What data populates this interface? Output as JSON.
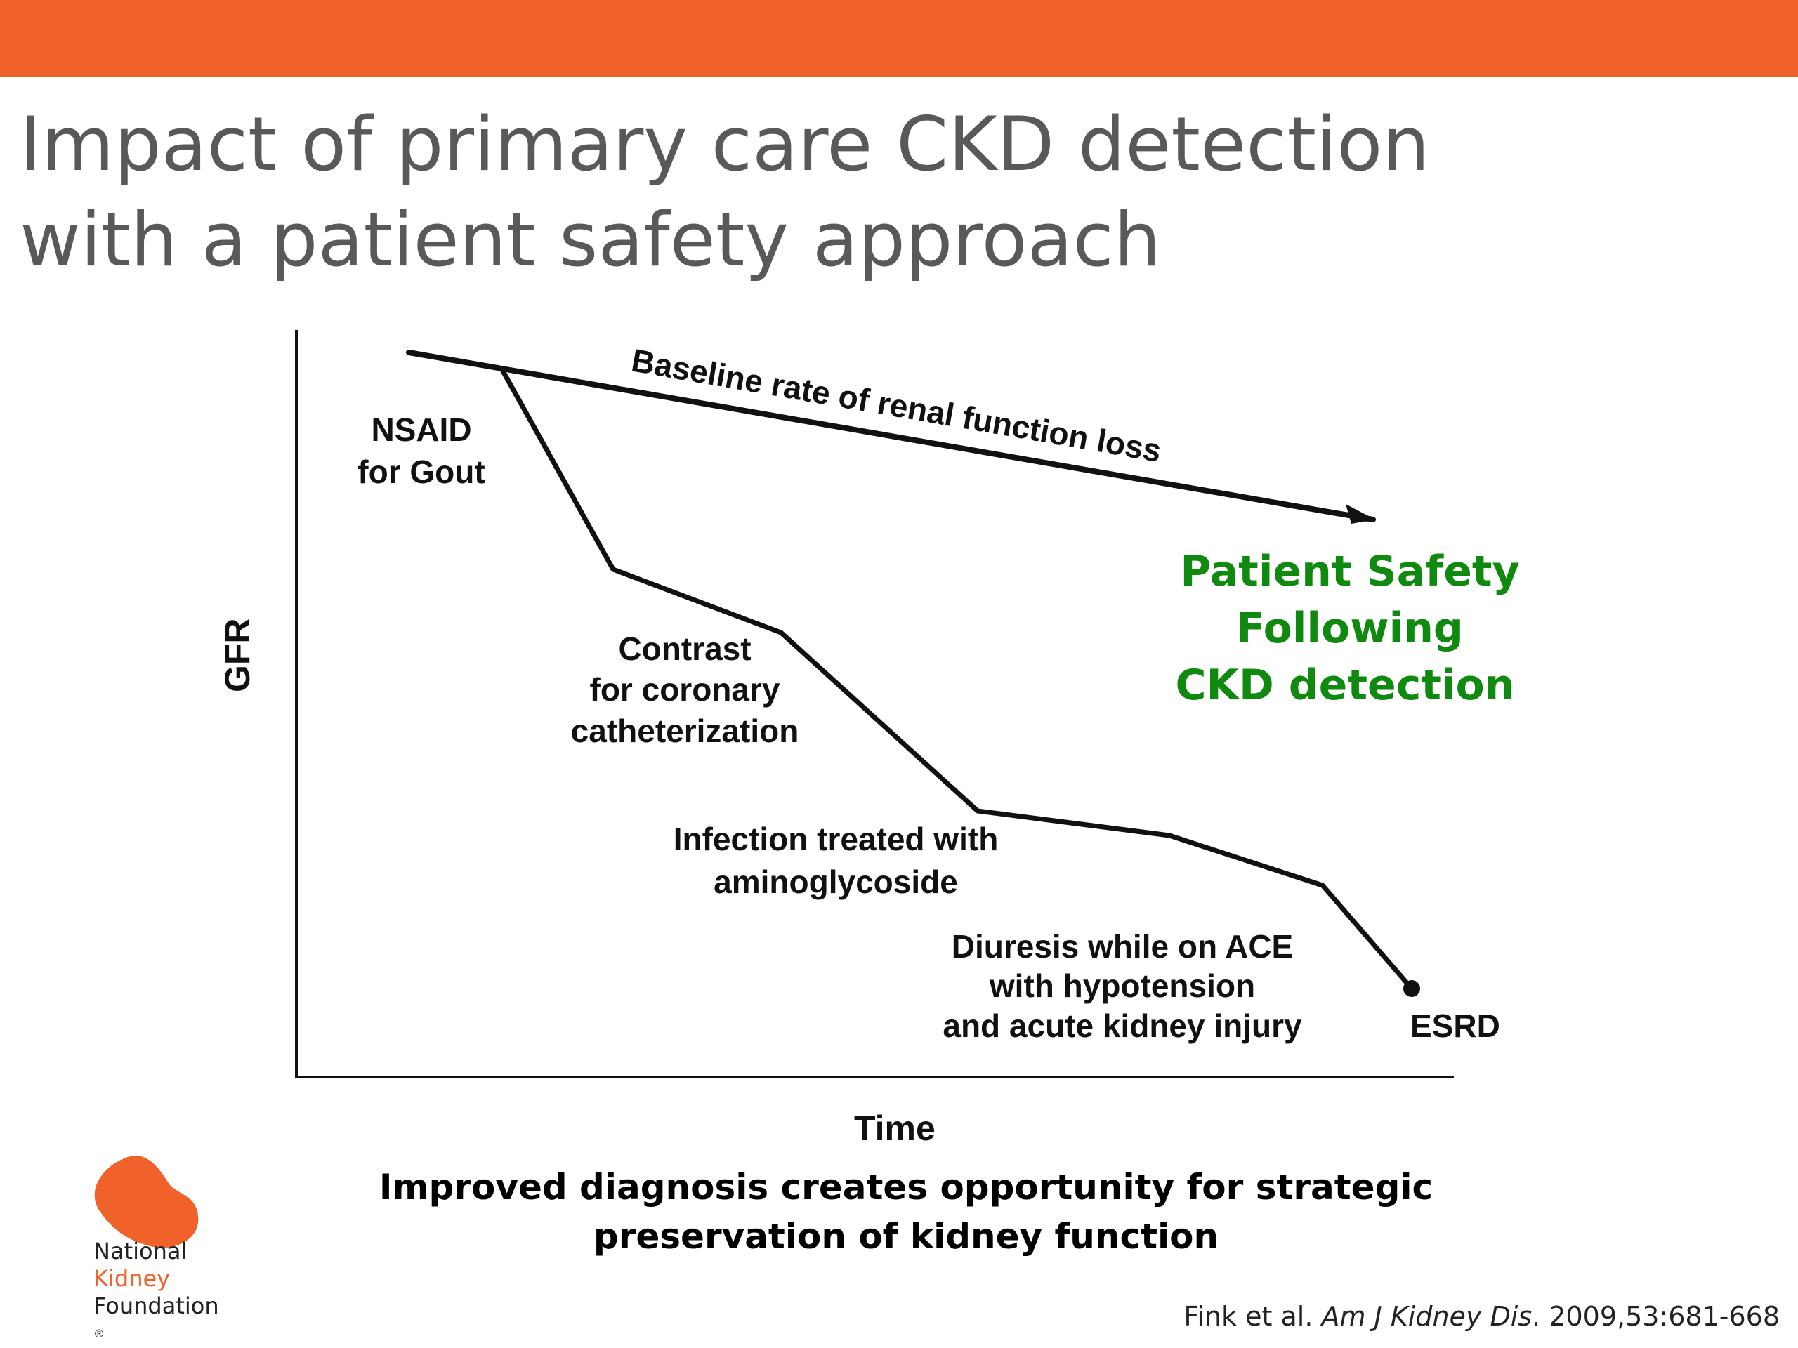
{
  "slide": {
    "title_line1": "Impact of primary care CKD detection",
    "title_line2": "with a patient safety approach",
    "accent_color": "#f0622a"
  },
  "diagram": {
    "y_axis_label": "GFR",
    "x_axis_label": "Time",
    "baseline_label": "Baseline rate of renal function loss",
    "events": {
      "nsaid": [
        "NSAID",
        "for Gout"
      ],
      "contrast": [
        "Contrast",
        "for coronary",
        "catheterization"
      ],
      "infection": [
        "Infection treated with",
        "aminoglycoside"
      ],
      "diuresis": [
        "Diuresis while on ACE",
        "with hypotension",
        "and acute kidney injury"
      ],
      "endpoint": "ESRD"
    },
    "patient_safety": [
      "Patient Safety",
      "Following",
      "CKD detection"
    ],
    "patient_safety_color": "#0f8a0f"
  },
  "conclusion": {
    "line1": "Improved diagnosis creates opportunity for strategic",
    "line2": "preservation of kidney function"
  },
  "logo": {
    "line1": "National",
    "line2": "Kidney",
    "line3": "Foundation",
    "mark": "®",
    "icon": "kidney-icon"
  },
  "citation": {
    "authors": "Fink et al. ",
    "journal": "Am J Kidney Dis",
    "details": ". 2009,53:681-668"
  }
}
